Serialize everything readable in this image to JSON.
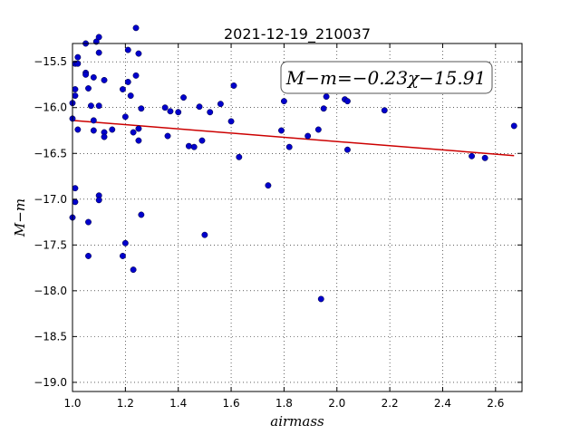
{
  "chart_data": {
    "type": "scatter",
    "title": "2021-12-19_210037",
    "xlabel": "airmass",
    "ylabel": "M−m",
    "xlim": [
      1.0,
      2.7
    ],
    "ylim": [
      -19.1,
      -15.3
    ],
    "y_inverted": true,
    "grid": true,
    "xticks": [
      1.0,
      1.2,
      1.4,
      1.6,
      1.8,
      2.0,
      2.2,
      2.4,
      2.6
    ],
    "xtick_labels": [
      "1.0",
      "1.2",
      "1.4",
      "1.6",
      "1.8",
      "2.0",
      "2.2",
      "2.4",
      "2.6"
    ],
    "yticks": [
      -15.5,
      -16.0,
      -16.5,
      -17.0,
      -17.5,
      -18.0,
      -18.5,
      -19.0
    ],
    "ytick_labels": [
      "−15.5",
      "−16.0",
      "−16.5",
      "−17.0",
      "−17.5",
      "−18.0",
      "−18.5",
      "−19.0"
    ],
    "annotation": "M−m=−0.23χ−15.91",
    "colors": {
      "points": "#0000cc",
      "fit": "#cc0000"
    },
    "points": [
      [
        1.0,
        -15.95
      ],
      [
        1.0,
        -16.12
      ],
      [
        1.0,
        -17.2
      ],
      [
        1.01,
        -15.52
      ],
      [
        1.01,
        -15.8
      ],
      [
        1.01,
        -15.87
      ],
      [
        1.01,
        -17.03
      ],
      [
        1.01,
        -16.88
      ],
      [
        1.02,
        -15.45
      ],
      [
        1.02,
        -15.52
      ],
      [
        1.02,
        -16.24
      ],
      [
        1.05,
        -15.62
      ],
      [
        1.05,
        -15.64
      ],
      [
        1.05,
        -15.3
      ],
      [
        1.06,
        -15.79
      ],
      [
        1.06,
        -17.25
      ],
      [
        1.06,
        -17.62
      ],
      [
        1.07,
        -15.98
      ],
      [
        1.08,
        -15.67
      ],
      [
        1.08,
        -16.25
      ],
      [
        1.08,
        -16.14
      ],
      [
        1.09,
        -15.28
      ],
      [
        1.1,
        -15.98
      ],
      [
        1.1,
        -15.23
      ],
      [
        1.1,
        -15.4
      ],
      [
        1.1,
        -16.96
      ],
      [
        1.1,
        -17.01
      ],
      [
        1.12,
        -15.7
      ],
      [
        1.12,
        -16.27
      ],
      [
        1.12,
        -16.32
      ],
      [
        1.15,
        -16.24
      ],
      [
        1.19,
        -17.62
      ],
      [
        1.19,
        -15.8
      ],
      [
        1.2,
        -16.1
      ],
      [
        1.2,
        -17.48
      ],
      [
        1.21,
        -15.37
      ],
      [
        1.21,
        -15.72
      ],
      [
        1.22,
        -15.87
      ],
      [
        1.23,
        -17.77
      ],
      [
        1.23,
        -16.27
      ],
      [
        1.24,
        -15.13
      ],
      [
        1.24,
        -15.65
      ],
      [
        1.25,
        -15.41
      ],
      [
        1.25,
        -16.23
      ],
      [
        1.25,
        -16.36
      ],
      [
        1.26,
        -16.01
      ],
      [
        1.26,
        -17.17
      ],
      [
        1.35,
        -16.0
      ],
      [
        1.36,
        -16.31
      ],
      [
        1.37,
        -16.04
      ],
      [
        1.4,
        -16.05
      ],
      [
        1.42,
        -15.89
      ],
      [
        1.44,
        -16.42
      ],
      [
        1.46,
        -16.43
      ],
      [
        1.48,
        -15.99
      ],
      [
        1.49,
        -16.36
      ],
      [
        1.5,
        -17.39
      ],
      [
        1.52,
        -16.05
      ],
      [
        1.56,
        -15.96
      ],
      [
        1.6,
        -16.15
      ],
      [
        1.61,
        -15.76
      ],
      [
        1.63,
        -16.54
      ],
      [
        1.74,
        -16.85
      ],
      [
        1.79,
        -16.25
      ],
      [
        1.8,
        -15.93
      ],
      [
        1.82,
        -16.43
      ],
      [
        1.89,
        -16.31
      ],
      [
        1.93,
        -16.24
      ],
      [
        1.94,
        -18.09
      ],
      [
        1.95,
        -16.01
      ],
      [
        1.96,
        -15.88
      ],
      [
        2.03,
        -15.91
      ],
      [
        2.04,
        -16.46
      ],
      [
        2.04,
        -15.93
      ],
      [
        2.18,
        -16.03
      ],
      [
        2.51,
        -16.53
      ],
      [
        2.56,
        -16.55
      ],
      [
        2.67,
        -16.2
      ]
    ],
    "fit": {
      "slope": -0.23,
      "intercept": -15.91,
      "x_range": [
        1.0,
        2.67
      ]
    }
  }
}
